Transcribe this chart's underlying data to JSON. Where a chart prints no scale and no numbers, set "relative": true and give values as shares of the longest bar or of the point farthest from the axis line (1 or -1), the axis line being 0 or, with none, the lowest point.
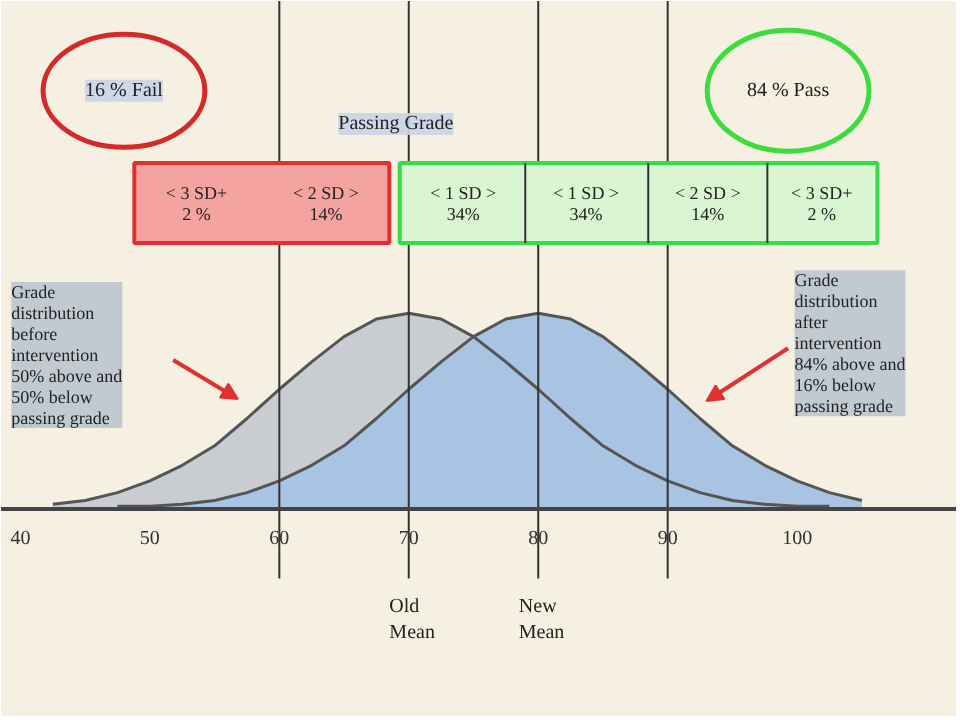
{
  "chart_data": {
    "type": "area",
    "relative": true,
    "xlim": [
      38.5,
      112.35
    ],
    "xticks": [
      40,
      50,
      60,
      70,
      80,
      90,
      100
    ],
    "series": [
      {
        "color": "#c9ccd1",
        "x": [
          42.5,
          45,
          47.5,
          50,
          52.5,
          55,
          57.5,
          60,
          62.5,
          65,
          67.5,
          70,
          72.5,
          75,
          77.5,
          80,
          82.5,
          85,
          87.5,
          90,
          92.5,
          95,
          97.5,
          100,
          102.5
        ],
        "values": [
          0.02,
          0.04,
          0.08,
          0.14,
          0.22,
          0.32,
          0.46,
          0.61,
          0.75,
          0.88,
          0.97,
          1,
          0.97,
          0.88,
          0.75,
          0.61,
          0.46,
          0.32,
          0.22,
          0.14,
          0.08,
          0.04,
          0.02,
          0.01,
          0.01
        ]
      },
      {
        "color": "#a9c3e3",
        "x": [
          47.5,
          50,
          52.5,
          55,
          57.5,
          60,
          62.5,
          65,
          67.5,
          70,
          72.5,
          75,
          77.5,
          80,
          82.5,
          85,
          87.5,
          90,
          92.5,
          95,
          97.5,
          100,
          102.5,
          105
        ],
        "values": [
          0.01,
          0.01,
          0.02,
          0.04,
          0.08,
          0.14,
          0.22,
          0.32,
          0.46,
          0.61,
          0.75,
          0.88,
          0.97,
          1,
          0.97,
          0.88,
          0.75,
          0.61,
          0.46,
          0.32,
          0.22,
          0.14,
          0.08,
          0.04
        ]
      }
    ],
    "ref_lines": [
      {
        "axis": "x",
        "value": 60,
        "color": "#333333"
      },
      {
        "axis": "x",
        "value": 70,
        "label": "Old Mean",
        "color": "#333333"
      },
      {
        "axis": "x",
        "value": 80,
        "label": "New Mean",
        "color": "#333333"
      },
      {
        "axis": "x",
        "value": 90,
        "color": "#333333"
      }
    ],
    "grid": false,
    "annotations": [
      "16 % Fail",
      "84 % Pass",
      "Passing Grade",
      "< 3 SD+ 2 %",
      "< 2 SD > 14%",
      "< 1 SD > 34%",
      "< 1 SD > 34%",
      "< 2 SD > 14%",
      "< 3 SD+ 2 %",
      "Grade distribution before intervention 50% above and 50% below passing grade",
      "Grade distribution after intervention 84% above and 16% below passing grade"
    ]
  }
}
